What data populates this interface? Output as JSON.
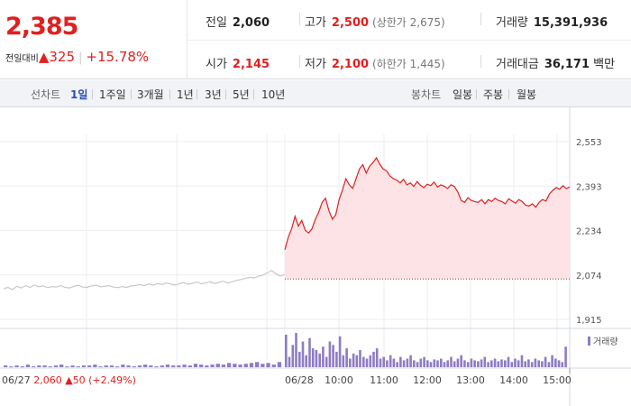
{
  "summary": {
    "current_price": "2,385",
    "change_label": "전일대비",
    "change_arrow": "▲",
    "change_value": "325",
    "change_separator": "|",
    "change_percent": "+15.78%"
  },
  "stats": {
    "prev_close": {
      "label": "전일",
      "value": "2,060"
    },
    "high": {
      "label": "고가",
      "value": "2,500",
      "sub": "(상한가 2,675)"
    },
    "volume": {
      "label": "거래량",
      "value": "15,391,936"
    },
    "open": {
      "label": "시가",
      "value": "2,145"
    },
    "low": {
      "label": "저가",
      "value": "2,100",
      "sub": "(하한가 1,445)"
    },
    "trade_value": {
      "label": "거래대금",
      "value": "36,171",
      "unit": "백만"
    }
  },
  "tabs": {
    "line_label": "선차트",
    "line_tabs": [
      "1일",
      "1주일",
      "3개월",
      "1년",
      "3년",
      "5년",
      "10년"
    ],
    "active_index": 0,
    "candle_label": "봉차트",
    "candle_tabs": [
      "일봉",
      "주봉",
      "월봉"
    ]
  },
  "colors": {
    "up": "#e02020",
    "up_fill": "#fde3e5",
    "prev_line": "#c8c8c8",
    "volume": "#8e7cc3",
    "active_tab": "#2a4fb3"
  },
  "chart_data": {
    "type": "line",
    "y_ticks": [
      "2,553",
      "2,393",
      "2,234",
      "2,074",
      "1,915"
    ],
    "ylim": [
      1915,
      2553
    ],
    "reference_price": 2060,
    "x_labels": [
      "06/28",
      "10:00",
      "11:00",
      "12:00",
      "13:00",
      "14:00",
      "15:00"
    ],
    "prev_day": {
      "date_label": "06/27",
      "close": "2,060",
      "change_arrow": "▲",
      "change": "50",
      "change_percent": "(+2.49%)",
      "values": [
        2025,
        2030,
        2022,
        2034,
        2028,
        2036,
        2030,
        2038,
        2032,
        2035,
        2029,
        2033,
        2031,
        2036,
        2030,
        2028,
        2034,
        2037,
        2031,
        2030,
        2035,
        2038,
        2032,
        2034,
        2036,
        2031,
        2029,
        2033,
        2030,
        2035,
        2037,
        2040,
        2036,
        2042,
        2038,
        2044,
        2040,
        2046,
        2042,
        2038,
        2043,
        2047,
        2041,
        2045,
        2049,
        2043,
        2046,
        2050,
        2044,
        2048,
        2052,
        2046,
        2050,
        2055,
        2058,
        2062,
        2066,
        2064,
        2070,
        2074,
        2082,
        2090,
        2078,
        2070,
        2076
      ]
    },
    "today": {
      "values": [
        2165,
        2210,
        2240,
        2285,
        2250,
        2270,
        2235,
        2225,
        2240,
        2275,
        2300,
        2335,
        2350,
        2305,
        2275,
        2290,
        2345,
        2380,
        2420,
        2398,
        2385,
        2420,
        2455,
        2470,
        2440,
        2465,
        2478,
        2495,
        2472,
        2455,
        2448,
        2430,
        2420,
        2415,
        2405,
        2418,
        2398,
        2405,
        2392,
        2410,
        2396,
        2388,
        2400,
        2395,
        2408,
        2390,
        2398,
        2393,
        2385,
        2398,
        2392,
        2372,
        2342,
        2335,
        2352,
        2342,
        2338,
        2335,
        2345,
        2330,
        2345,
        2338,
        2350,
        2342,
        2338,
        2330,
        2348,
        2340,
        2332,
        2345,
        2338,
        2325,
        2322,
        2330,
        2318,
        2335,
        2345,
        2340,
        2365,
        2378,
        2388,
        2382,
        2395,
        2385,
        2390
      ]
    },
    "volume_legend": "거래량",
    "volume": {
      "prev_day": [
        2,
        1,
        2,
        1,
        3,
        1,
        2,
        2,
        1,
        2,
        3,
        1,
        2,
        1,
        2,
        2,
        3,
        1,
        2,
        2,
        1,
        3,
        2,
        1,
        2,
        3,
        2,
        1,
        2,
        3,
        2,
        2,
        3,
        2,
        4,
        3,
        2,
        3,
        4,
        3,
        5,
        4,
        3,
        4,
        5,
        6,
        4,
        5,
        3,
        6
      ],
      "today": [
        38,
        12,
        26,
        40,
        18,
        30,
        14,
        34,
        22,
        20,
        16,
        24,
        12,
        30,
        26,
        18,
        36,
        14,
        22,
        10,
        16,
        14,
        20,
        12,
        10,
        14,
        18,
        22,
        10,
        12,
        8,
        14,
        10,
        6,
        12,
        8,
        10,
        14,
        8,
        6,
        10,
        12,
        8,
        6,
        9,
        8,
        10,
        6,
        8,
        12,
        7,
        10,
        14,
        8,
        6,
        10,
        8,
        7,
        9,
        12,
        6,
        8,
        10,
        7,
        9,
        8,
        12,
        6,
        10,
        8,
        14,
        7,
        9,
        6,
        10,
        8,
        7,
        12,
        6,
        14,
        10,
        8,
        6,
        24
      ]
    }
  }
}
